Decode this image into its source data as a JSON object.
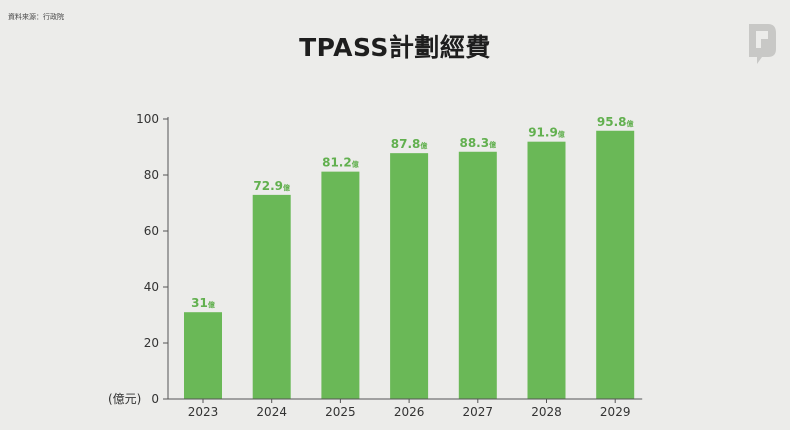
{
  "source_note": "資料來源：行政院",
  "title": "TPASS計劃經費",
  "logo": {
    "icon": "publisher-logo-icon",
    "color": "#c8c8c6"
  },
  "colors": {
    "bar": "#6ab857",
    "label": "#62b04f",
    "axis": "#555555"
  },
  "chart_data": {
    "type": "bar",
    "title": "TPASS計劃經費",
    "xlabel": "",
    "ylabel": "(億元)",
    "ylim": [
      0,
      100
    ],
    "yticks": [
      0,
      20,
      40,
      60,
      80,
      100
    ],
    "grid": false,
    "categories": [
      "2023",
      "2024",
      "2025",
      "2026",
      "2027",
      "2028",
      "2029"
    ],
    "values": [
      31,
      72.9,
      81.2,
      87.8,
      88.3,
      91.9,
      95.8
    ],
    "data_labels": [
      "31",
      "72.9",
      "81.2",
      "87.8",
      "88.3",
      "91.9",
      "95.8"
    ],
    "label_unit": "億"
  }
}
